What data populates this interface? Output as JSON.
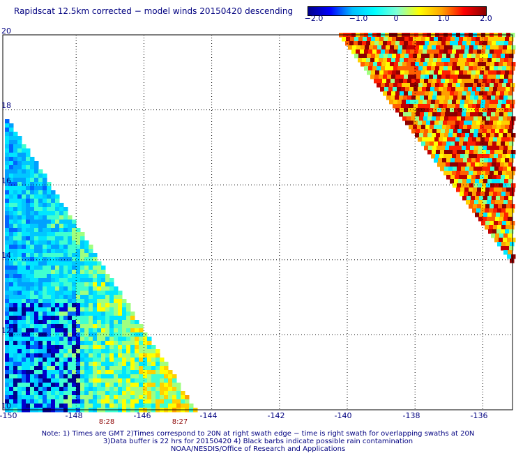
{
  "title": "Rapidscat 12.5km corrected − model winds 20150420 descending",
  "colorbar": {
    "ticks": [
      "−2.0",
      "−1.0",
      "0",
      "1.0",
      "2.0"
    ],
    "colors": [
      "#00008b",
      "#0000ff",
      "#00bfff",
      "#00ffff",
      "#7fffd4",
      "#ffff00",
      "#ffa500",
      "#ff0000",
      "#8b0000"
    ]
  },
  "map": {
    "lat_labels": [
      "20",
      "18",
      "16",
      "14",
      "12",
      "10"
    ],
    "lon_labels": [
      "-150",
      "-148",
      "-146",
      "-144",
      "-142",
      "-140",
      "-138",
      "-136"
    ],
    "grid": "dotted",
    "lat_range": [
      10,
      20
    ],
    "lon_range": [
      -150,
      -135.3
    ]
  },
  "swath_times": [
    "8:28",
    "8:27"
  ],
  "notes": [
    "Note: 1) Times are GMT 2)Times correspond to 20N at right swath edge − time is right swath for overlapping swaths at 20N",
    "3)Data buffer is 22 hrs for 20150420 4) Black barbs indicate possible rain contamination",
    "NOAA/NESDIS/Office of Research and Applications"
  ]
}
